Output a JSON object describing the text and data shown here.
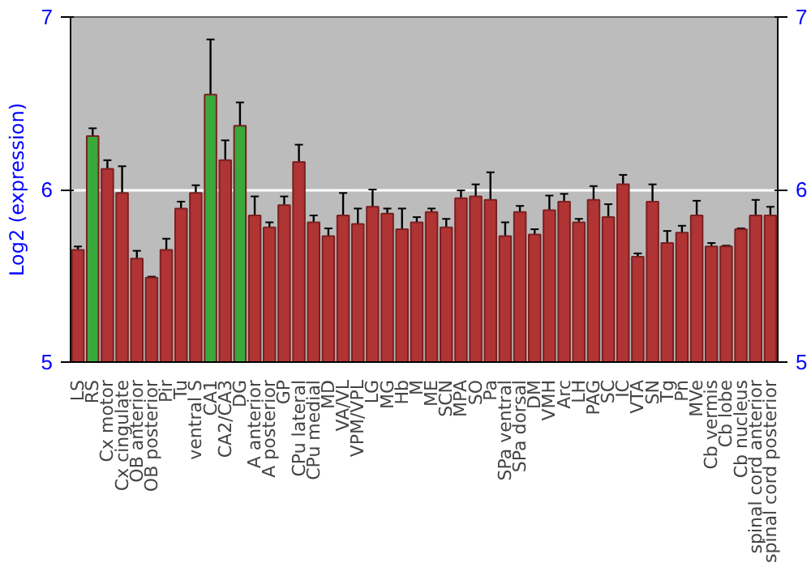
{
  "chart_data": {
    "type": "bar",
    "ylabel": "Log2 (expression)",
    "categories": [
      "LS",
      "RS",
      "Cx motor",
      "Cx cingulate",
      "OB anterior",
      "OB posterior",
      "Pir",
      "Tu",
      "ventral S",
      "CA1",
      "CA2/CA3",
      "DG",
      "A anterior",
      "A posterior",
      "GP",
      "CPu lateral",
      "CPu medial",
      "MD",
      "VA/VL",
      "VPM/VPL",
      "LG",
      "MG",
      "Hb",
      "M",
      "ME",
      "SCN",
      "MPA",
      "SO",
      "Pa",
      "SPa ventral",
      "SPa dorsal",
      "DM",
      "VMH",
      "Arc",
      "LH",
      "PAG",
      "SC",
      "IC",
      "VTA",
      "SN",
      "Tg",
      "Pn",
      "MVe",
      "Cb vermis",
      "Cb lobe",
      "Cb nucleus",
      "spinal cord anterior",
      "spinal cord posterior"
    ],
    "values": [
      5.65,
      6.31,
      6.12,
      5.98,
      5.6,
      5.49,
      5.65,
      5.89,
      5.98,
      6.55,
      6.17,
      6.37,
      5.85,
      5.78,
      5.91,
      6.16,
      5.81,
      5.73,
      5.85,
      5.8,
      5.9,
      5.86,
      5.77,
      5.81,
      5.87,
      5.78,
      5.95,
      5.96,
      5.94,
      5.73,
      5.87,
      5.74,
      5.88,
      5.93,
      5.81,
      5.94,
      5.84,
      6.03,
      5.61,
      5.93,
      5.69,
      5.75,
      5.85,
      5.67,
      5.67,
      5.77,
      5.85,
      5.85
    ],
    "errors": [
      0.02,
      0.045,
      0.05,
      0.155,
      0.045,
      0.005,
      0.065,
      0.04,
      0.045,
      0.32,
      0.115,
      0.135,
      0.11,
      0.03,
      0.05,
      0.1,
      0.04,
      0.045,
      0.13,
      0.09,
      0.1,
      0.03,
      0.12,
      0.03,
      0.02,
      0.05,
      0.045,
      0.07,
      0.16,
      0.08,
      0.035,
      0.03,
      0.085,
      0.045,
      0.02,
      0.08,
      0.075,
      0.055,
      0.02,
      0.1,
      0.07,
      0.04,
      0.085,
      0.02,
      0.005,
      0.005,
      0.09,
      0.05
    ],
    "colors": [
      "#b03434",
      "#3aa83a",
      "#b03434",
      "#b03434",
      "#b03434",
      "#b03434",
      "#b03434",
      "#b03434",
      "#b03434",
      "#3aa83a",
      "#b03434",
      "#3aa83a",
      "#b03434",
      "#b03434",
      "#b03434",
      "#b03434",
      "#b03434",
      "#b03434",
      "#b03434",
      "#b03434",
      "#b03434",
      "#b03434",
      "#b03434",
      "#b03434",
      "#b03434",
      "#b03434",
      "#b03434",
      "#b03434",
      "#b03434",
      "#b03434",
      "#b03434",
      "#b03434",
      "#b03434",
      "#b03434",
      "#b03434",
      "#b03434",
      "#b03434",
      "#b03434",
      "#b03434",
      "#b03434",
      "#b03434",
      "#b03434",
      "#b03434",
      "#b03434",
      "#b03434",
      "#b03434",
      "#b03434",
      "#b03434"
    ],
    "ylim": [
      5,
      7
    ],
    "yticks": [
      5,
      6,
      7
    ],
    "y2lim": [
      5,
      7
    ],
    "y2ticks": [
      5,
      6,
      7
    ],
    "grid": "y"
  }
}
